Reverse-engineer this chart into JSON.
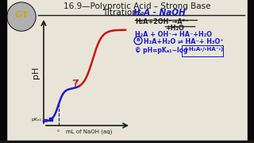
{
  "bg_color": "#e8e5d8",
  "side_black": "#111111",
  "text_black": "#1a1a1a",
  "text_blue": "#1515cc",
  "text_red": "#cc1111",
  "curve_blue": "#1a1acc",
  "curve_red": "#cc1111",
  "title1": "16.9—Polyprotic Acid – Strong Base",
  "title2": "Titrations ",
  "title2b": "H₂A - NaOH",
  "ylabel": "pH",
  "xlabel": "mL of NaOH (aq)",
  "pka_label": "pKₐ₁",
  "eq1": "H₂A+2OH⁻→A²⁻",
  "eq2": "+H₂O",
  "eq3": "H₂A + OH⁻→ HA⁻+H₂O",
  "eq4": "H₂A+H₂O ⇌ HA⁻+ H₃O⁺",
  "eq5": "pH=pKₐ₁-log",
  "gold_color": "#c8a800",
  "logo_gray": "#888888"
}
